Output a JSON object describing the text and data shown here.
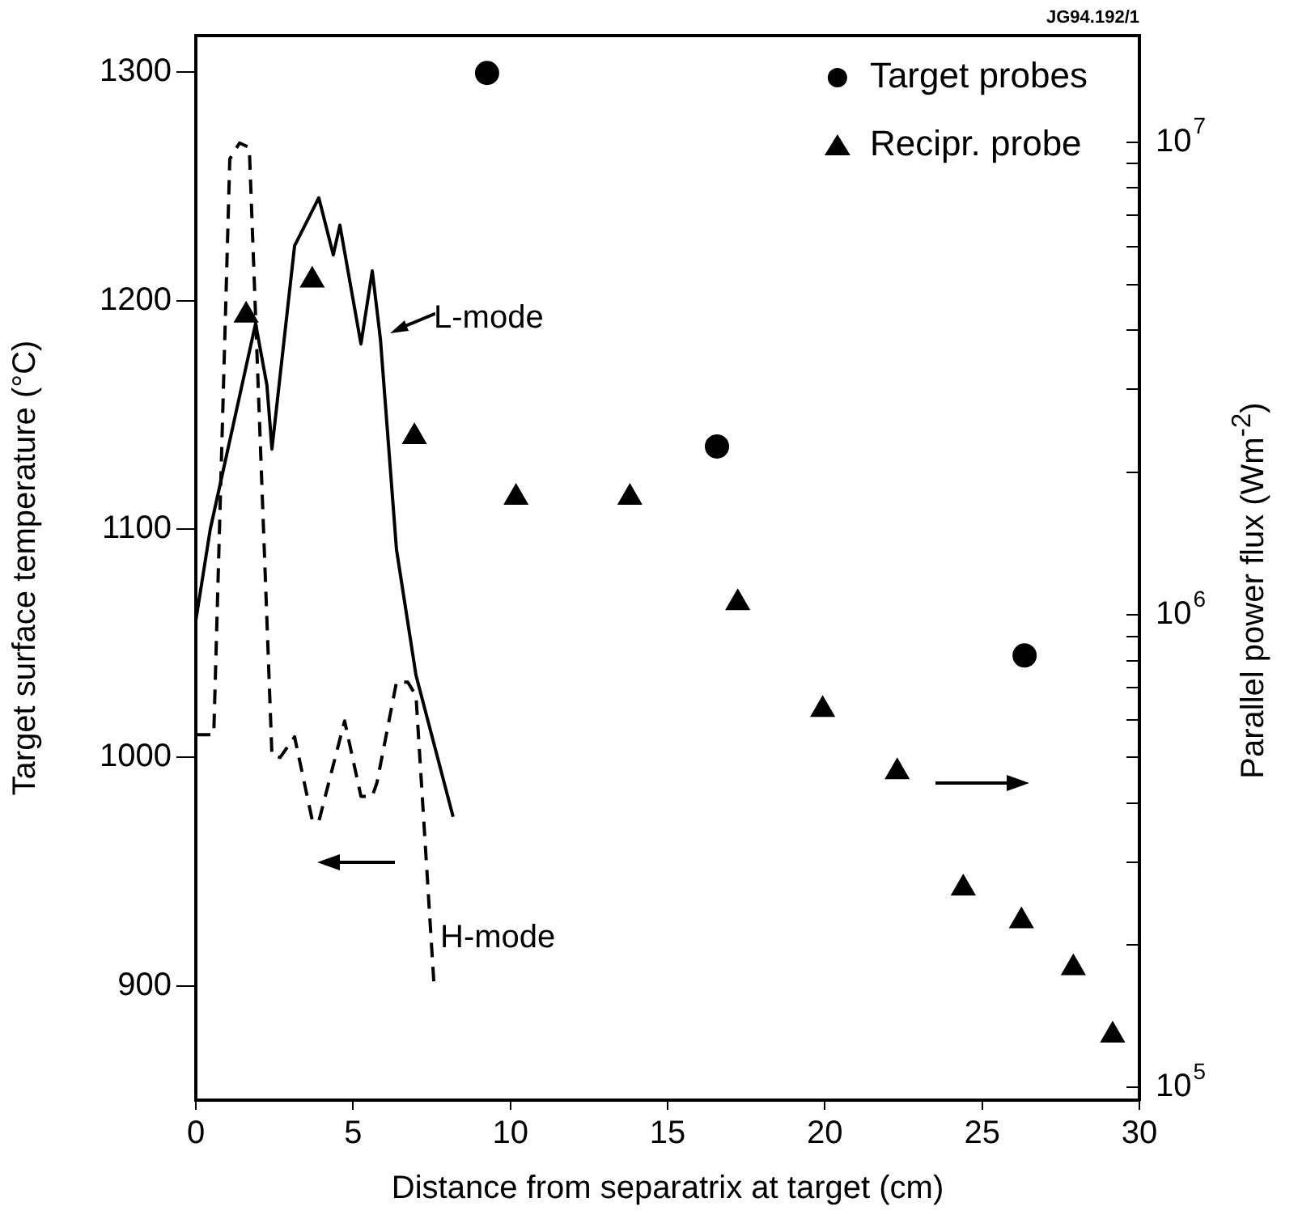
{
  "chart_data": {
    "type": "line",
    "xlabel": "Distance from separatrix at target (cm)",
    "ylabel": "Target surface temperature (°C)",
    "y2label": "Parallel power flux (Wm$^{-2}$)",
    "xlim": [
      0,
      30
    ],
    "xticks": [
      0,
      5,
      10,
      15,
      20,
      25,
      30
    ],
    "ylim": [
      850,
      1316
    ],
    "yticks": [
      900,
      1000,
      1100,
      1200,
      1300
    ],
    "y2lim": [
      94000,
      16800000
    ],
    "y2ticks": [
      {
        "value": 100000,
        "label": "10$^{5}$"
      },
      {
        "value": 200000,
        "label": null
      },
      {
        "value": 300000,
        "label": null
      },
      {
        "value": 400000,
        "label": null
      },
      {
        "value": 500000,
        "label": null
      },
      {
        "value": 600000,
        "label": null
      },
      {
        "value": 700000,
        "label": null
      },
      {
        "value": 800000,
        "label": null
      },
      {
        "value": 900000,
        "label": null
      },
      {
        "value": 1000000,
        "label": "10$^{6}$"
      },
      {
        "value": 2000000,
        "label": null
      },
      {
        "value": 3000000,
        "label": null
      },
      {
        "value": 4000000,
        "label": null
      },
      {
        "value": 5000000,
        "label": null
      },
      {
        "value": 6000000,
        "label": null
      },
      {
        "value": 7000000,
        "label": null
      },
      {
        "value": 8000000,
        "label": null
      },
      {
        "value": 9000000,
        "label": null
      },
      {
        "value": 10000000,
        "label": "10$^{7}$"
      }
    ],
    "log": "y2",
    "grid": false,
    "legend": "top right",
    "series": [
      {
        "line_style": "solid",
        "marker": "none",
        "color": "#000000",
        "x": [
          0,
          0.46,
          1.9,
          2.26,
          2.42,
          3.14,
          3.91,
          4.37,
          4.58,
          5.25,
          5.61,
          5.87,
          6.38,
          7.0,
          8.18
        ],
        "values": [
          1060,
          1100,
          1190,
          1163,
          1135,
          1224,
          1245,
          1220,
          1233,
          1181,
          1213,
          1183,
          1091,
          1036,
          974
        ]
      },
      {
        "line_style": "dashed",
        "marker": "none",
        "color": "#000000",
        "x": [
          0,
          0.57,
          1.08,
          1.39,
          1.7,
          2.42,
          2.68,
          3.14,
          3.71,
          3.91,
          4.73,
          5.25,
          5.61,
          5.76,
          6.38,
          6.74,
          7.0,
          7.57
        ],
        "values": [
          1010,
          1010,
          1262,
          1269,
          1267,
          1001,
          1000,
          1009,
          972,
          972,
          1016,
          983,
          983,
          989,
          1033,
          1033,
          1027,
          901
        ]
      },
      {
        "type": "scatter",
        "name": "Target probes",
        "marker": "circle",
        "color": "#000000",
        "axis": "y2",
        "x": [
          9.26,
          16.57,
          26.35
        ],
        "values": [
          14000000,
          2270000,
          820000
        ]
      },
      {
        "type": "scatter",
        "name": "Recipr. probe",
        "marker": "triangle",
        "color": "#000000",
        "axis": "y2",
        "x": [
          1.6,
          3.7,
          6.95,
          10.18,
          13.8,
          17.23,
          19.93,
          22.3,
          24.4,
          26.25,
          27.9,
          29.15
        ],
        "values": [
          4300000,
          5100000,
          2380000,
          1770000,
          1770000,
          1060000,
          630000,
          465000,
          264000,
          225000,
          179000,
          129000
        ]
      }
    ],
    "annotations": [
      "L-mode",
      "H-mode",
      "JG94.192/1"
    ]
  }
}
